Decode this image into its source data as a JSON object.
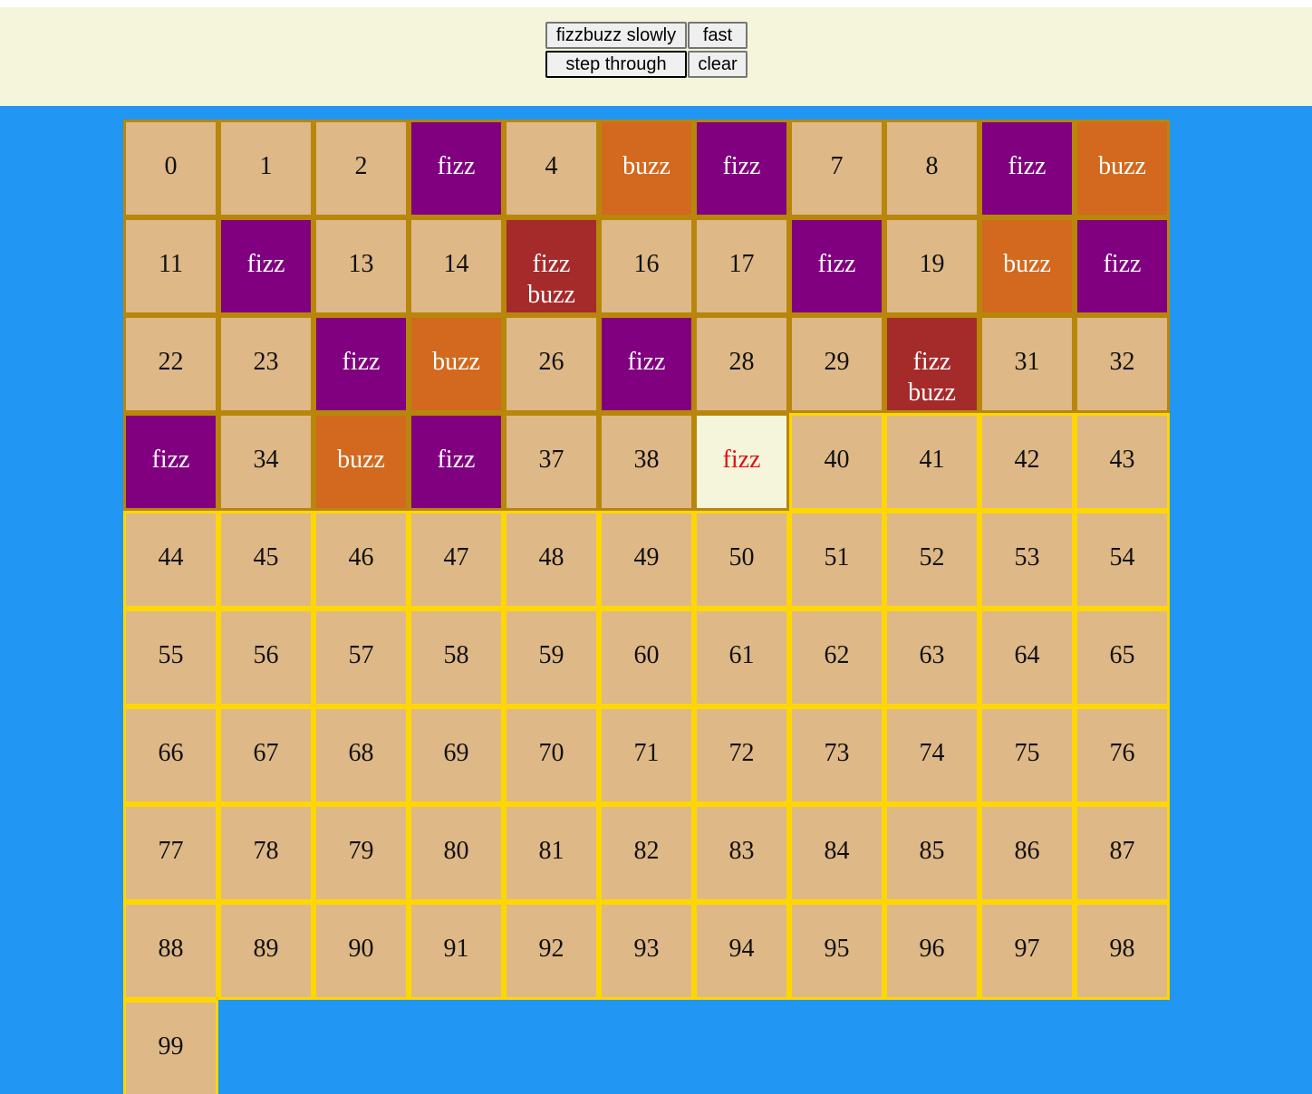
{
  "controls": {
    "slow_label": "fizzbuzz slowly",
    "fast_label": "fast",
    "step_label": "step through",
    "clear_label": "clear"
  },
  "colors": {
    "toolbar_bg": "#f5f5dc",
    "page_bg": "#2196f3",
    "cell_bg": "#deb887",
    "fizz_bg": "#800080",
    "buzz_bg": "#d2691e",
    "fizzbuzz_bg": "#a52a2a",
    "current_bg": "#f5f5dc",
    "current_text": "#e01010",
    "done_border": "#b8860b",
    "pending_border": "#ffd700"
  },
  "grid": {
    "columns": 11,
    "current_index": 39,
    "cells": [
      {
        "label": "0",
        "kind": "num"
      },
      {
        "label": "1",
        "kind": "num"
      },
      {
        "label": "2",
        "kind": "num"
      },
      {
        "label": "fizz",
        "kind": "fizz"
      },
      {
        "label": "4",
        "kind": "num"
      },
      {
        "label": "buzz",
        "kind": "buzz"
      },
      {
        "label": "fizz",
        "kind": "fizz"
      },
      {
        "label": "7",
        "kind": "num"
      },
      {
        "label": "8",
        "kind": "num"
      },
      {
        "label": "fizz",
        "kind": "fizz"
      },
      {
        "label": "buzz",
        "kind": "buzz"
      },
      {
        "label": "11",
        "kind": "num"
      },
      {
        "label": "fizz",
        "kind": "fizz"
      },
      {
        "label": "13",
        "kind": "num"
      },
      {
        "label": "14",
        "kind": "num"
      },
      {
        "label": "fizz buzz",
        "kind": "fizzbuzz"
      },
      {
        "label": "16",
        "kind": "num"
      },
      {
        "label": "17",
        "kind": "num"
      },
      {
        "label": "fizz",
        "kind": "fizz"
      },
      {
        "label": "19",
        "kind": "num"
      },
      {
        "label": "buzz",
        "kind": "buzz"
      },
      {
        "label": "fizz",
        "kind": "fizz"
      },
      {
        "label": "22",
        "kind": "num"
      },
      {
        "label": "23",
        "kind": "num"
      },
      {
        "label": "fizz",
        "kind": "fizz"
      },
      {
        "label": "buzz",
        "kind": "buzz"
      },
      {
        "label": "26",
        "kind": "num"
      },
      {
        "label": "fizz",
        "kind": "fizz"
      },
      {
        "label": "28",
        "kind": "num"
      },
      {
        "label": "29",
        "kind": "num"
      },
      {
        "label": "fizz buzz",
        "kind": "fizzbuzz"
      },
      {
        "label": "31",
        "kind": "num"
      },
      {
        "label": "32",
        "kind": "num"
      },
      {
        "label": "fizz",
        "kind": "fizz"
      },
      {
        "label": "34",
        "kind": "num"
      },
      {
        "label": "buzz",
        "kind": "buzz"
      },
      {
        "label": "fizz",
        "kind": "fizz"
      },
      {
        "label": "37",
        "kind": "num"
      },
      {
        "label": "38",
        "kind": "num"
      },
      {
        "label": "fizz",
        "kind": "current"
      },
      {
        "label": "40",
        "kind": "pending"
      },
      {
        "label": "41",
        "kind": "pending"
      },
      {
        "label": "42",
        "kind": "pending"
      },
      {
        "label": "43",
        "kind": "pending"
      },
      {
        "label": "44",
        "kind": "pending"
      },
      {
        "label": "45",
        "kind": "pending"
      },
      {
        "label": "46",
        "kind": "pending"
      },
      {
        "label": "47",
        "kind": "pending"
      },
      {
        "label": "48",
        "kind": "pending"
      },
      {
        "label": "49",
        "kind": "pending"
      },
      {
        "label": "50",
        "kind": "pending"
      },
      {
        "label": "51",
        "kind": "pending"
      },
      {
        "label": "52",
        "kind": "pending"
      },
      {
        "label": "53",
        "kind": "pending"
      },
      {
        "label": "54",
        "kind": "pending"
      },
      {
        "label": "55",
        "kind": "pending"
      },
      {
        "label": "56",
        "kind": "pending"
      },
      {
        "label": "57",
        "kind": "pending"
      },
      {
        "label": "58",
        "kind": "pending"
      },
      {
        "label": "59",
        "kind": "pending"
      },
      {
        "label": "60",
        "kind": "pending"
      },
      {
        "label": "61",
        "kind": "pending"
      },
      {
        "label": "62",
        "kind": "pending"
      },
      {
        "label": "63",
        "kind": "pending"
      },
      {
        "label": "64",
        "kind": "pending"
      },
      {
        "label": "65",
        "kind": "pending"
      },
      {
        "label": "66",
        "kind": "pending"
      },
      {
        "label": "67",
        "kind": "pending"
      },
      {
        "label": "68",
        "kind": "pending"
      },
      {
        "label": "69",
        "kind": "pending"
      },
      {
        "label": "70",
        "kind": "pending"
      },
      {
        "label": "71",
        "kind": "pending"
      },
      {
        "label": "72",
        "kind": "pending"
      },
      {
        "label": "73",
        "kind": "pending"
      },
      {
        "label": "74",
        "kind": "pending"
      },
      {
        "label": "75",
        "kind": "pending"
      },
      {
        "label": "76",
        "kind": "pending"
      },
      {
        "label": "77",
        "kind": "pending"
      },
      {
        "label": "78",
        "kind": "pending"
      },
      {
        "label": "79",
        "kind": "pending"
      },
      {
        "label": "80",
        "kind": "pending"
      },
      {
        "label": "81",
        "kind": "pending"
      },
      {
        "label": "82",
        "kind": "pending"
      },
      {
        "label": "83",
        "kind": "pending"
      },
      {
        "label": "84",
        "kind": "pending"
      },
      {
        "label": "85",
        "kind": "pending"
      },
      {
        "label": "86",
        "kind": "pending"
      },
      {
        "label": "87",
        "kind": "pending"
      },
      {
        "label": "88",
        "kind": "pending"
      },
      {
        "label": "89",
        "kind": "pending"
      },
      {
        "label": "90",
        "kind": "pending"
      },
      {
        "label": "91",
        "kind": "pending"
      },
      {
        "label": "92",
        "kind": "pending"
      },
      {
        "label": "93",
        "kind": "pending"
      },
      {
        "label": "94",
        "kind": "pending"
      },
      {
        "label": "95",
        "kind": "pending"
      },
      {
        "label": "96",
        "kind": "pending"
      },
      {
        "label": "97",
        "kind": "pending"
      },
      {
        "label": "98",
        "kind": "pending"
      },
      {
        "label": "99",
        "kind": "pending"
      }
    ]
  }
}
